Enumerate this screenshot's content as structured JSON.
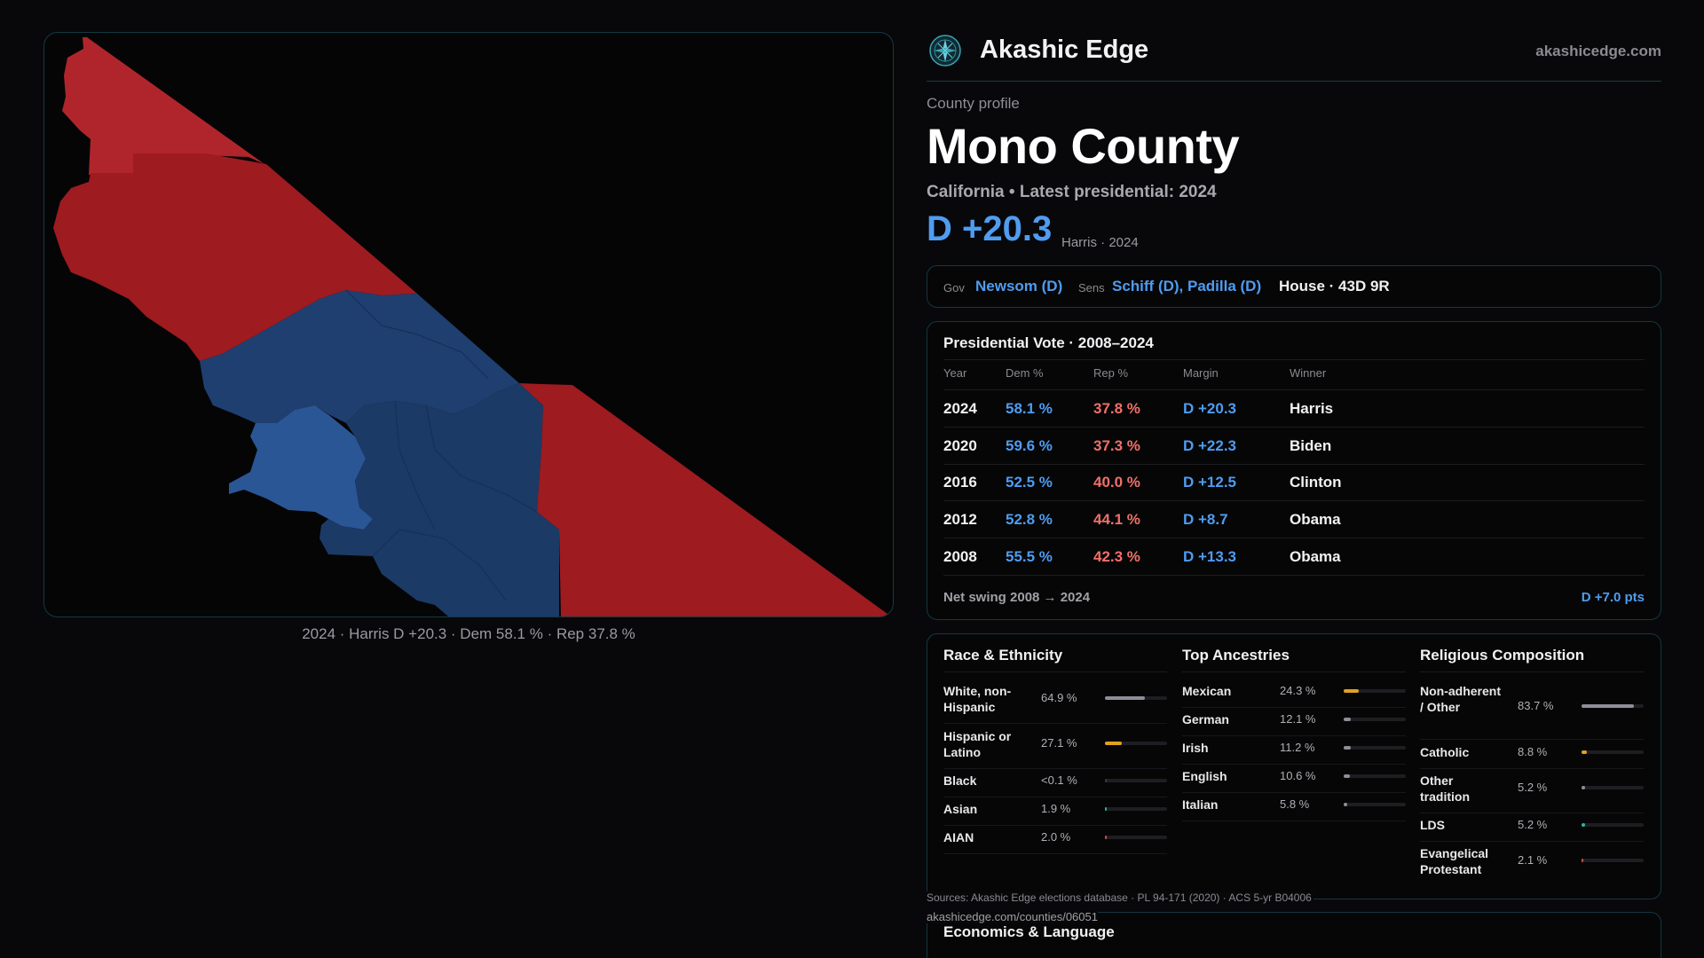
{
  "map": {
    "caption": "2024 · Harris D +20.3 · Dem 58.1 % · Rep 37.8 %",
    "colors": {
      "rep": "#9e1b20",
      "rep_light": "#b0252b",
      "dem": "#1f3f70",
      "dem_light": "#2b5695",
      "dem_dark": "#1c3a66",
      "boundary": "#163058"
    }
  },
  "brand": {
    "name": "Akashic Edge",
    "url": "akashicedge.com",
    "logo_icon": "compass-rose-icon"
  },
  "header": {
    "kicker": "County profile",
    "county": "Mono County",
    "subhead": "California • Latest presidential: 2024",
    "margin": "D +20.3",
    "margin_note": "Harris · 2024"
  },
  "officials": {
    "gov_label": "Gov",
    "gov": "Newsom (D)",
    "sens_label": "Sens",
    "sens": "Schiff (D), Padilla (D)",
    "house": "House · 43D 9R"
  },
  "presidential": {
    "title": "Presidential Vote · 2008–2024",
    "headers": {
      "year": "Year",
      "dem": "Dem %",
      "rep": "Rep %",
      "margin": "Margin",
      "winner": "Winner"
    },
    "rows": [
      {
        "year": "2024",
        "dem": "58.1 %",
        "rep": "37.8 %",
        "margin": "D +20.3",
        "winner": "Harris"
      },
      {
        "year": "2020",
        "dem": "59.6 %",
        "rep": "37.3 %",
        "margin": "D +22.3",
        "winner": "Biden"
      },
      {
        "year": "2016",
        "dem": "52.5 %",
        "rep": "40.0 %",
        "margin": "D +12.5",
        "winner": "Clinton"
      },
      {
        "year": "2012",
        "dem": "52.8 %",
        "rep": "44.1 %",
        "margin": "D +8.7",
        "winner": "Obama"
      },
      {
        "year": "2008",
        "dem": "55.5 %",
        "rep": "42.3 %",
        "margin": "D +13.3",
        "winner": "Obama"
      }
    ],
    "swing_label": "Net swing 2008 → 2024",
    "swing_value": "D +7.0 pts"
  },
  "race": {
    "title": "Race & Ethnicity",
    "rows": [
      {
        "label": "White, non-Hispanic",
        "value": "64.9 %",
        "pct": 64.9,
        "color": "#8e8e98"
      },
      {
        "label": "Hispanic or Latino",
        "value": "27.1 %",
        "pct": 27.1,
        "color": "#e0a21e"
      },
      {
        "label": "Black",
        "value": "<0.1 %",
        "pct": 0.1,
        "color": "#3a3a40"
      },
      {
        "label": "Asian",
        "value": "1.9 %",
        "pct": 1.9,
        "color": "#2bb3a8"
      },
      {
        "label": "AIAN",
        "value": "2.0 %",
        "pct": 2.0,
        "color": "#d0503c"
      }
    ]
  },
  "ancestry": {
    "title": "Top Ancestries",
    "rows": [
      {
        "label": "Mexican",
        "value": "24.3 %",
        "pct": 24.3,
        "color": "#e0a21e"
      },
      {
        "label": "German",
        "value": "12.1 %",
        "pct": 12.1,
        "color": "#8e8e98"
      },
      {
        "label": "Irish",
        "value": "11.2 %",
        "pct": 11.2,
        "color": "#8e8e98"
      },
      {
        "label": "English",
        "value": "10.6 %",
        "pct": 10.6,
        "color": "#8e8e98"
      },
      {
        "label": "Italian",
        "value": "5.8 %",
        "pct": 5.8,
        "color": "#8e8e98"
      }
    ]
  },
  "religion": {
    "title": "Religious Composition",
    "rows": [
      {
        "label": "Non-adherent / Other",
        "value": "83.7 %",
        "pct": 83.7,
        "color": "#8e8e98"
      },
      {
        "label": "Catholic",
        "value": "8.8 %",
        "pct": 8.8,
        "color": "#e0a21e"
      },
      {
        "label": "Other tradition",
        "value": "5.2 %",
        "pct": 5.2,
        "color": "#8e8e98"
      },
      {
        "label": "LDS",
        "value": "5.2 %",
        "pct": 5.2,
        "color": "#2bb3a8"
      },
      {
        "label": "Evangelical Protestant",
        "value": "2.1 %",
        "pct": 2.1,
        "color": "#d0503c"
      }
    ]
  },
  "footer": {
    "sources": "Sources: Akashic Edge elections database · PL 94-171 (2020) · ACS 5-yr B04006",
    "url": "akashicedge.com/counties/06051"
  },
  "economics": {
    "title": "Economics & Language"
  }
}
